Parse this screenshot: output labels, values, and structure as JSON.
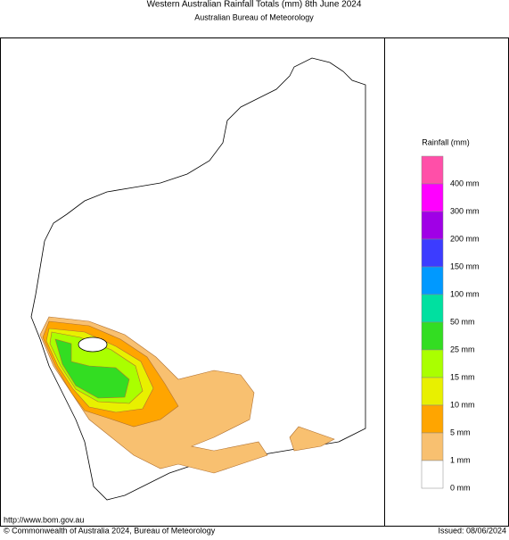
{
  "header": {
    "title": "Western Australian Rainfall Totals (mm) 8th June 2024",
    "subtitle": "Australian Bureau of Meteorology"
  },
  "legend": {
    "title": "Rainfall (mm)",
    "entries": [
      {
        "label": "400 mm",
        "color": "#ff4fa8"
      },
      {
        "label": "300 mm",
        "color": "#ff00ff"
      },
      {
        "label": "200 mm",
        "color": "#a000e6"
      },
      {
        "label": "150 mm",
        "color": "#3c3cff"
      },
      {
        "label": "100 mm",
        "color": "#0099ff"
      },
      {
        "label": "50 mm",
        "color": "#00e0a0"
      },
      {
        "label": "25 mm",
        "color": "#33dd22"
      },
      {
        "label": "15 mm",
        "color": "#aaff00"
      },
      {
        "label": "10 mm",
        "color": "#e8f000"
      },
      {
        "label": "5 mm",
        "color": "#ffa500"
      },
      {
        "label": "1 mm",
        "color": "#f8c070"
      },
      {
        "label": "0 mm",
        "color": "#ffffff"
      }
    ]
  },
  "footer": {
    "url": "http://www.bom.gov.au",
    "copyright": "© Commonwealth of Australia 2024, Bureau of Meteorology",
    "issued": "Issued: 08/06/2024"
  }
}
